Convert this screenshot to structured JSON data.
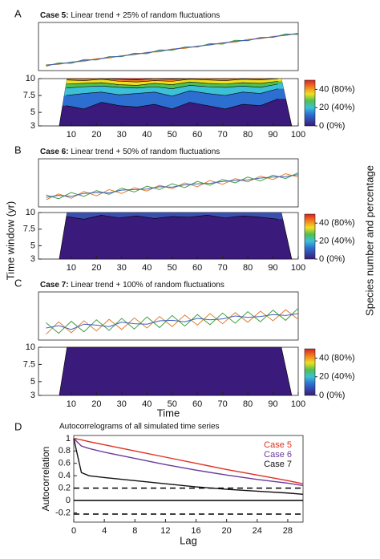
{
  "labels": {
    "y_label": "Time window (yr)",
    "colorbar_label": "Species number and percentage"
  },
  "chart_data": [
    {
      "type": "line",
      "panel": "A",
      "title_bold": "Case 5:",
      "title": " Linear trend + 25% of random fluctuations",
      "xlim": [
        -3,
        100
      ],
      "ylim": [
        0,
        1
      ],
      "x": [
        0,
        5,
        10,
        15,
        20,
        25,
        30,
        35,
        40,
        45,
        50,
        55,
        60,
        65,
        70,
        75,
        80,
        85,
        90,
        95,
        100
      ],
      "series": [
        {
          "color": "#e08030",
          "values": [
            0.12,
            0.13,
            0.18,
            0.19,
            0.25,
            0.26,
            0.31,
            0.33,
            0.38,
            0.39,
            0.45,
            0.46,
            0.51,
            0.53,
            0.58,
            0.59,
            0.65,
            0.66,
            0.71,
            0.73,
            0.78
          ]
        },
        {
          "color": "#40a040",
          "values": [
            0.09,
            0.16,
            0.15,
            0.23,
            0.22,
            0.29,
            0.29,
            0.36,
            0.35,
            0.43,
            0.42,
            0.49,
            0.49,
            0.56,
            0.55,
            0.63,
            0.62,
            0.69,
            0.69,
            0.76,
            0.75
          ]
        },
        {
          "color": "#4060c0",
          "values": [
            0.11,
            0.14,
            0.17,
            0.21,
            0.23,
            0.28,
            0.3,
            0.34,
            0.37,
            0.41,
            0.44,
            0.48,
            0.5,
            0.54,
            0.57,
            0.61,
            0.63,
            0.68,
            0.7,
            0.74,
            0.77
          ]
        }
      ]
    },
    {
      "type": "contour",
      "xlim": [
        -3,
        100
      ],
      "xticks": [
        10,
        20,
        30,
        40,
        50,
        60,
        70,
        80,
        90,
        100
      ],
      "ylim": [
        3,
        10
      ],
      "yticks": [
        3,
        5,
        7.5,
        10
      ],
      "colormap": "jet",
      "clim": [
        0,
        50
      ],
      "cticks": [
        {
          "value": 0,
          "label": "0 (0%)"
        },
        {
          "value": 20,
          "label": "20 (40%)"
        },
        {
          "value": 40,
          "label": "40 (80%)"
        }
      ],
      "x": [
        8,
        15,
        22,
        29,
        36,
        43,
        50,
        57,
        64,
        71,
        78,
        85,
        92
      ],
      "series": [
        {
          "color": "#2c6fd1",
          "values": [
            6.0,
            5.5,
            6.5,
            6.0,
            5.8,
            6.2,
            5.5,
            6.5,
            6.0,
            5.5,
            6.2,
            6.0,
            7.0
          ]
        },
        {
          "color": "#3cc0d8",
          "values": [
            7.5,
            7.8,
            8.0,
            7.6,
            7.8,
            8.0,
            7.4,
            8.2,
            7.8,
            7.5,
            8.0,
            7.8,
            8.5
          ]
        },
        {
          "color": "#50c050",
          "values": [
            8.6,
            8.8,
            8.9,
            8.7,
            8.6,
            8.8,
            8.5,
            9.0,
            8.8,
            8.7,
            8.9,
            8.7,
            9.2
          ]
        },
        {
          "color": "#f0e020",
          "values": [
            9.2,
            9.3,
            9.4,
            9.1,
            9.0,
            9.3,
            9.1,
            9.5,
            9.3,
            9.2,
            9.4,
            9.3,
            9.6
          ]
        },
        {
          "color": "#f08020",
          "values": [
            9.8,
            9.7,
            9.9,
            9.6,
            9.5,
            9.7,
            9.6,
            9.9,
            9.8,
            9.7,
            9.9,
            9.8,
            10
          ]
        },
        {
          "color": "#e02020",
          "values": [
            10,
            10,
            10,
            9.9,
            9.8,
            10,
            9.9,
            10,
            10,
            10,
            10,
            10,
            10
          ]
        }
      ]
    },
    {
      "type": "line",
      "panel": "B",
      "title_bold": "Case 6:",
      "title": " Linear trend + 50% of random fluctuations",
      "xlim": [
        -3,
        100
      ],
      "ylim": [
        0,
        1
      ],
      "x": [
        0,
        5,
        10,
        15,
        20,
        25,
        30,
        35,
        40,
        45,
        50,
        55,
        60,
        65,
        70,
        75,
        80,
        85,
        90,
        95,
        100
      ],
      "series": [
        {
          "color": "#e08030",
          "values": [
            0.15,
            0.27,
            0.18,
            0.32,
            0.23,
            0.36,
            0.28,
            0.4,
            0.33,
            0.45,
            0.38,
            0.5,
            0.42,
            0.55,
            0.47,
            0.59,
            0.52,
            0.64,
            0.57,
            0.69,
            0.62
          ]
        },
        {
          "color": "#40a040",
          "values": [
            0.25,
            0.17,
            0.3,
            0.22,
            0.34,
            0.26,
            0.39,
            0.31,
            0.43,
            0.36,
            0.48,
            0.4,
            0.53,
            0.45,
            0.57,
            0.5,
            0.62,
            0.54,
            0.66,
            0.59,
            0.71
          ]
        },
        {
          "color": "#4060c0",
          "values": [
            0.2,
            0.24,
            0.22,
            0.28,
            0.3,
            0.29,
            0.35,
            0.36,
            0.37,
            0.42,
            0.41,
            0.46,
            0.48,
            0.49,
            0.53,
            0.55,
            0.56,
            0.6,
            0.62,
            0.63,
            0.67
          ]
        }
      ]
    },
    {
      "type": "contour",
      "xlim": [
        -3,
        100
      ],
      "xticks": [
        10,
        20,
        30,
        40,
        50,
        60,
        70,
        80,
        90,
        100
      ],
      "ylim": [
        3,
        10
      ],
      "yticks": [
        3,
        5,
        7.5,
        10
      ],
      "colormap": "jet",
      "clim": [
        0,
        50
      ],
      "cticks": [
        {
          "value": 0,
          "label": "0 (0%)"
        },
        {
          "value": 20,
          "label": "20 (40%)"
        },
        {
          "value": 40,
          "label": "40 (80%)"
        }
      ],
      "x": [
        8,
        15,
        22,
        29,
        36,
        43,
        50,
        57,
        64,
        71,
        78,
        85,
        92
      ],
      "series": [
        {
          "color": "#3a50b0",
          "values": [
            9.4,
            9.0,
            9.6,
            9.2,
            9.5,
            9.1,
            9.4,
            9.3,
            9.6,
            9.2,
            9.5,
            9.3,
            9.0
          ]
        }
      ]
    },
    {
      "type": "line",
      "panel": "C",
      "title_bold": "Case 7:",
      "title": " Linear trend + 100% of random fluctuations",
      "xlim": [
        -3,
        100
      ],
      "ylim": [
        0,
        1
      ],
      "x": [
        0,
        5,
        10,
        15,
        20,
        25,
        30,
        35,
        40,
        45,
        50,
        55,
        60,
        65,
        70,
        75,
        80,
        85,
        90,
        95,
        100
      ],
      "series": [
        {
          "color": "#e08030",
          "values": [
            0.12,
            0.38,
            0.15,
            0.4,
            0.19,
            0.43,
            0.22,
            0.46,
            0.25,
            0.49,
            0.28,
            0.52,
            0.31,
            0.55,
            0.34,
            0.57,
            0.37,
            0.6,
            0.4,
            0.63,
            0.43
          ]
        },
        {
          "color": "#40a040",
          "values": [
            0.36,
            0.14,
            0.39,
            0.17,
            0.42,
            0.2,
            0.45,
            0.23,
            0.48,
            0.26,
            0.51,
            0.29,
            0.53,
            0.32,
            0.56,
            0.35,
            0.59,
            0.38,
            0.62,
            0.41,
            0.66
          ]
        },
        {
          "color": "#4060c0",
          "values": [
            0.25,
            0.3,
            0.22,
            0.33,
            0.31,
            0.28,
            0.37,
            0.34,
            0.33,
            0.4,
            0.41,
            0.38,
            0.45,
            0.42,
            0.44,
            0.5,
            0.47,
            0.49,
            0.53,
            0.51,
            0.55
          ]
        }
      ]
    },
    {
      "type": "contour",
      "xlabel": "Time",
      "xlim": [
        -3,
        100
      ],
      "xticks": [
        10,
        20,
        30,
        40,
        50,
        60,
        70,
        80,
        90,
        100
      ],
      "ylim": [
        3,
        10
      ],
      "yticks": [
        3,
        5,
        7.5,
        10
      ],
      "colormap": "jet",
      "clim": [
        0,
        50
      ],
      "cticks": [
        {
          "value": 0,
          "label": "0 (0%)"
        },
        {
          "value": 20,
          "label": "20 (40%)"
        },
        {
          "value": 40,
          "label": "40 (80%)"
        }
      ],
      "x": [
        8,
        15,
        22,
        29,
        36,
        43,
        50,
        57,
        64,
        71,
        78,
        85,
        92
      ],
      "series": []
    },
    {
      "type": "line",
      "panel": "D",
      "title": "Autocorrelograms of all simulated time series",
      "xlabel": "Lag",
      "ylabel": "Autocorrelation",
      "xlim": [
        0,
        30
      ],
      "xticks": [
        0,
        4,
        8,
        12,
        16,
        20,
        24,
        28
      ],
      "ylim": [
        -0.35,
        1.05
      ],
      "yticks": [
        -0.2,
        0,
        0.2,
        0.4,
        0.6,
        0.8,
        1
      ],
      "legend": "top-right",
      "reference_lines": [
        {
          "value": 0.2,
          "style": "dashed"
        },
        {
          "value": 0,
          "style": "solid"
        },
        {
          "value": -0.22,
          "style": "dashed"
        }
      ],
      "x": [
        0,
        1,
        2,
        4,
        8,
        12,
        16,
        20,
        24,
        28,
        30
      ],
      "series": [
        {
          "name": "Case 5",
          "color": "#e03020",
          "values": [
            1,
            0.98,
            0.95,
            0.9,
            0.8,
            0.7,
            0.6,
            0.5,
            0.41,
            0.32,
            0.27
          ]
        },
        {
          "name": "Case 6",
          "color": "#6a3a9a",
          "values": [
            1,
            0.88,
            0.84,
            0.78,
            0.68,
            0.58,
            0.49,
            0.41,
            0.34,
            0.28,
            0.24
          ]
        },
        {
          "name": "Case 7",
          "color": "#111111",
          "values": [
            1,
            0.45,
            0.4,
            0.37,
            0.32,
            0.27,
            0.22,
            0.18,
            0.15,
            0.12,
            0.1
          ]
        }
      ]
    }
  ]
}
